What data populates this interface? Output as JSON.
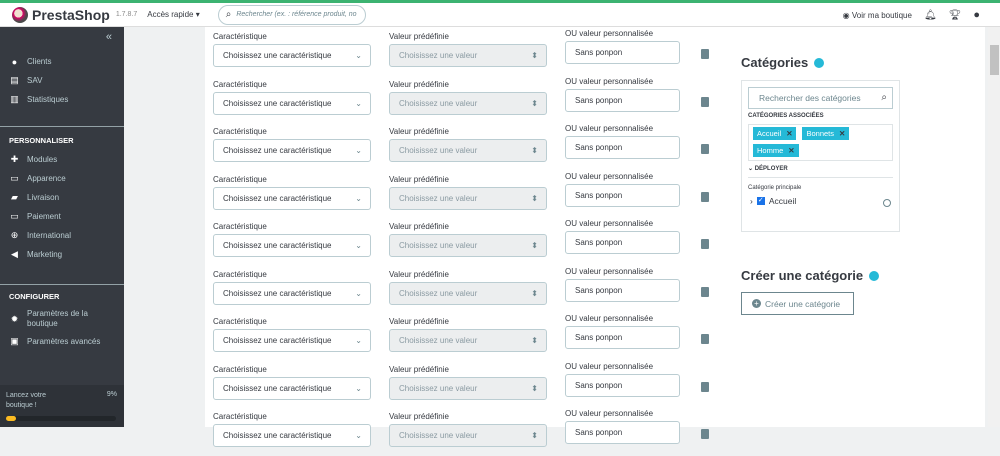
{
  "header": {
    "brand": "PrestaShop",
    "version": "1.7.8.7",
    "quick_access": "Accès rapide",
    "search_placeholder": "Rechercher (ex. : référence produit, no",
    "view_shop": "Voir ma boutique"
  },
  "sidebar": {
    "items_top": [
      {
        "label": "Clients",
        "icon": "user-icon"
      },
      {
        "label": "SAV",
        "icon": "chat-icon"
      },
      {
        "label": "Statistiques",
        "icon": "chart-icon"
      }
    ],
    "section1": "PERSONNALISER",
    "items_perso": [
      {
        "label": "Modules",
        "icon": "puzzle-icon"
      },
      {
        "label": "Apparence",
        "icon": "monitor-icon"
      },
      {
        "label": "Livraison",
        "icon": "truck-icon"
      },
      {
        "label": "Paiement",
        "icon": "card-icon"
      },
      {
        "label": "International",
        "icon": "globe-icon"
      },
      {
        "label": "Marketing",
        "icon": "megaphone-icon"
      }
    ],
    "section2": "CONFIGURER",
    "items_config": [
      {
        "label": "Paramètres de la boutique",
        "icon": "gear-icon"
      },
      {
        "label": "Paramètres avancés",
        "icon": "settings-box-icon"
      }
    ],
    "launch": {
      "label": "Lancez votre boutique !",
      "percent": "9%",
      "progress": 0.09
    }
  },
  "features": {
    "label_feature": "Caractéristique",
    "label_value": "Valeur prédéfinie",
    "label_custom": "OU valeur personnalisée",
    "rows": [
      {
        "feature": "Choisissez une caractéristique",
        "value": "Choisissez une valeur",
        "custom": "Sans ponpon"
      },
      {
        "feature": "Choisissez une caractéristique",
        "value": "Choisissez une valeur",
        "custom": "Sans ponpon"
      },
      {
        "feature": "Choisissez une caractéristique",
        "value": "Choisissez une valeur",
        "custom": "Sans ponpon"
      },
      {
        "feature": "Choisissez une caractéristique",
        "value": "Choisissez une valeur",
        "custom": "Sans ponpon"
      },
      {
        "feature": "Choisissez une caractéristique",
        "value": "Choisissez une valeur",
        "custom": "Sans ponpon"
      },
      {
        "feature": "Choisissez une caractéristique",
        "value": "Choisissez une valeur",
        "custom": "Sans ponpon"
      },
      {
        "feature": "Choisissez une caractéristique",
        "value": "Choisissez une valeur",
        "custom": "Sans ponpon"
      },
      {
        "feature": "Choisissez une caractéristique",
        "value": "Choisissez une valeur",
        "custom": "Sans ponpon"
      },
      {
        "feature": "Choisissez une caractéristique",
        "value": "Choisissez une valeur",
        "custom": "Sans ponpon"
      }
    ]
  },
  "categories": {
    "title": "Catégories",
    "search_placeholder": "Rechercher des catégories",
    "associated_label": "CATÉGORIES ASSOCIÉES",
    "tags": [
      "Accueil",
      "Bonnets",
      "Homme"
    ],
    "expand": "DÉPLOYER",
    "main_label": "Catégorie principale",
    "tree_item": "Accueil"
  },
  "create": {
    "title": "Créer une catégorie",
    "button": "Créer une catégorie"
  },
  "colors": {
    "accent": "#25b9d7",
    "sidebar": "#363a41",
    "brand": "#df0067"
  }
}
